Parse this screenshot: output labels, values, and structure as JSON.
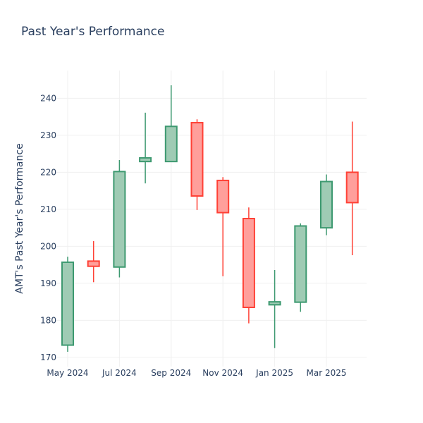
{
  "chart_data": {
    "type": "candlestick",
    "title": "Past Year's Performance",
    "xlabel": "",
    "ylabel": "AMT's Past Year's Performance",
    "ylim": [
      167.5,
      247.5
    ],
    "y_ticks": [
      170,
      180,
      190,
      200,
      210,
      220,
      230,
      240
    ],
    "x_tick_labels": [
      "May 2024",
      "Jul 2024",
      "Sep 2024",
      "Nov 2024",
      "Jan 2025",
      "Mar 2025"
    ],
    "grid": true,
    "legend": "none",
    "colors": {
      "increasing_line": "#3d9970",
      "increasing_fill": "#9fcbb4",
      "decreasing_line": "#ff4136",
      "decreasing_fill": "#ff9f9b",
      "grid": "#f0f0f0",
      "text": "#2a3f5f"
    },
    "candles": [
      {
        "date": "2024-05",
        "open": 173.3,
        "high": 197.2,
        "low": 171.5,
        "close": 195.7
      },
      {
        "date": "2024-06",
        "open": 196.0,
        "high": 201.4,
        "low": 190.3,
        "close": 194.6
      },
      {
        "date": "2024-07",
        "open": 194.4,
        "high": 223.3,
        "low": 191.6,
        "close": 220.2
      },
      {
        "date": "2024-08",
        "open": 222.9,
        "high": 236.1,
        "low": 217.0,
        "close": 223.9
      },
      {
        "date": "2024-09",
        "open": 222.9,
        "high": 243.5,
        "low": 222.9,
        "close": 232.4
      },
      {
        "date": "2024-10",
        "open": 233.4,
        "high": 234.3,
        "low": 209.8,
        "close": 213.6
      },
      {
        "date": "2024-11",
        "open": 217.8,
        "high": 218.7,
        "low": 191.9,
        "close": 209.1
      },
      {
        "date": "2024-12",
        "open": 207.5,
        "high": 210.5,
        "low": 179.2,
        "close": 183.5
      },
      {
        "date": "2025-01",
        "open": 184.2,
        "high": 193.6,
        "low": 172.5,
        "close": 185.0
      },
      {
        "date": "2025-02",
        "open": 184.9,
        "high": 206.2,
        "low": 182.3,
        "close": 205.5
      },
      {
        "date": "2025-03",
        "open": 205.0,
        "high": 219.4,
        "low": 203.0,
        "close": 217.5
      },
      {
        "date": "2025-04",
        "open": 220.0,
        "high": 233.7,
        "low": 197.6,
        "close": 211.8
      }
    ]
  }
}
